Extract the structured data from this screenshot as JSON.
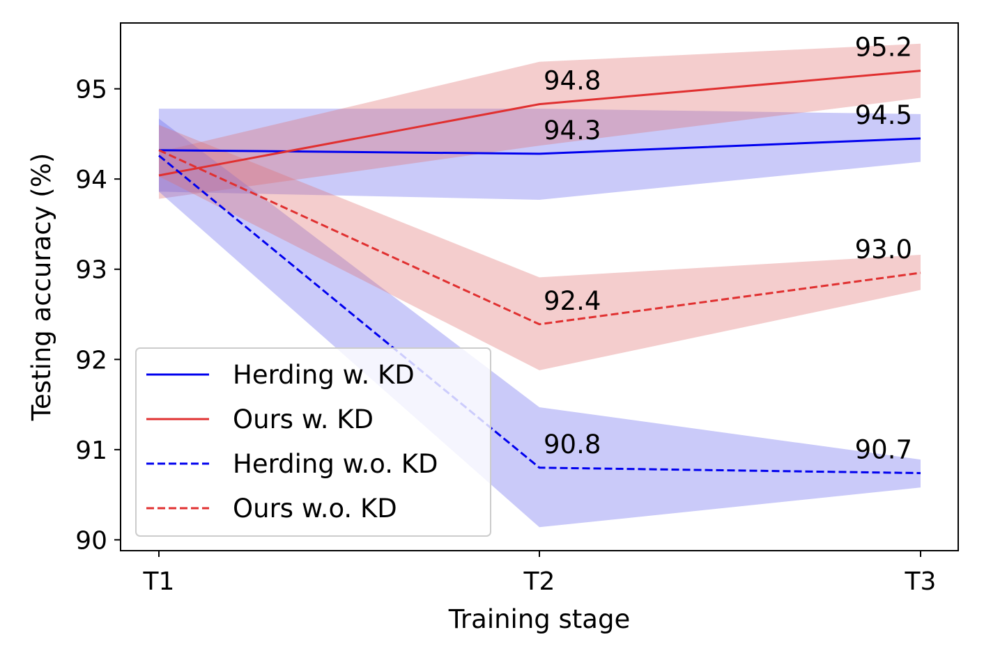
{
  "chart_data": {
    "type": "line",
    "xlabel": "Training stage",
    "ylabel": "Testing accuracy (%)",
    "categories": [
      "T1",
      "T2",
      "T3"
    ],
    "ylim": [
      89.88,
      95.73
    ],
    "yticks": [
      90,
      91,
      92,
      93,
      94,
      95
    ],
    "grid": false,
    "legend_position": "lower-left",
    "series": [
      {
        "name": "Herding w. KD",
        "color": "#0000ee",
        "linestyle": "solid",
        "values": [
          94.32,
          94.28,
          94.45
        ],
        "band_lower": [
          93.86,
          93.77,
          94.19
        ],
        "band_upper": [
          94.78,
          94.78,
          94.72
        ],
        "band_color": "#6666ee",
        "labels": [
          "",
          "94.3",
          "94.5"
        ]
      },
      {
        "name": "Ours w. KD",
        "color": "#e03030",
        "linestyle": "solid",
        "values": [
          94.04,
          94.83,
          95.2
        ],
        "band_lower": [
          93.78,
          94.37,
          94.9
        ],
        "band_upper": [
          94.3,
          95.3,
          95.5
        ],
        "band_color": "#e07070",
        "labels": [
          "",
          "94.8",
          "95.2"
        ]
      },
      {
        "name": "Herding w.o. KD",
        "color": "#0000ee",
        "linestyle": "dashed",
        "values": [
          94.26,
          90.8,
          90.74
        ],
        "band_lower": [
          93.86,
          90.14,
          90.58
        ],
        "band_upper": [
          94.67,
          91.47,
          90.89
        ],
        "band_color": "#6666ee",
        "labels": [
          "",
          "90.8",
          "90.7"
        ]
      },
      {
        "name": "Ours w.o. KD",
        "color": "#e03030",
        "linestyle": "dashed",
        "values": [
          94.32,
          92.39,
          92.96
        ],
        "band_lower": [
          94.03,
          91.88,
          92.77
        ],
        "band_upper": [
          94.6,
          92.91,
          93.16
        ],
        "band_color": "#e07070",
        "labels": [
          "",
          "92.4",
          "93.0"
        ]
      }
    ]
  }
}
